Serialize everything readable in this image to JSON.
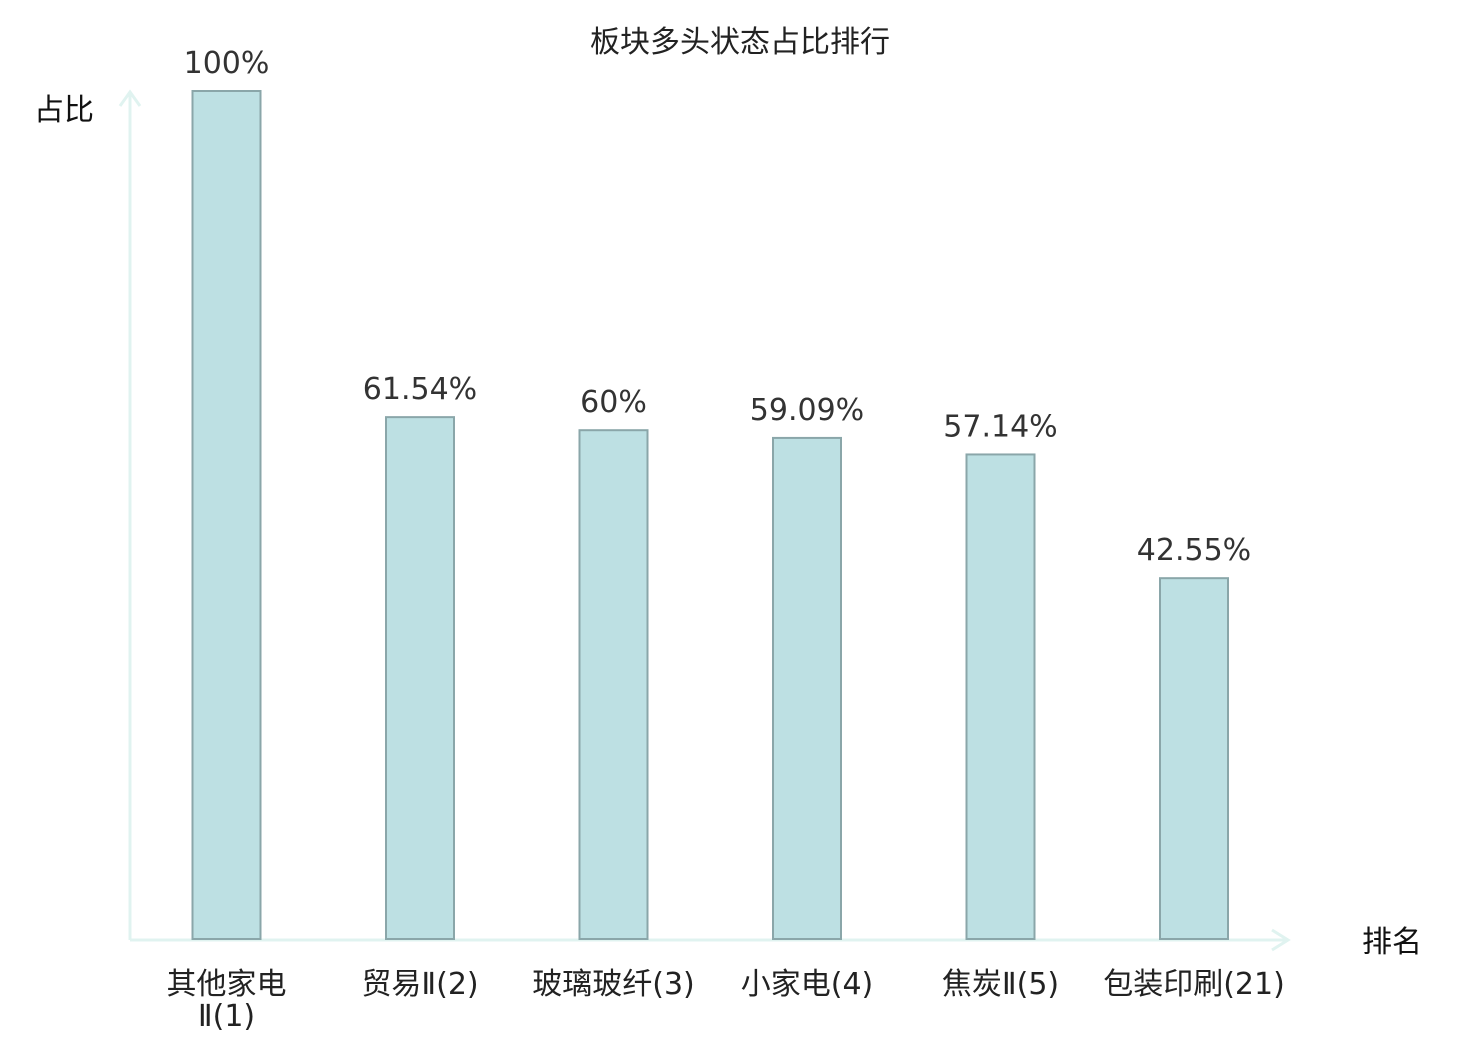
{
  "chart_data": {
    "type": "bar",
    "title": "板块多头状态占比排行",
    "ylabel": "占比",
    "xlabel": "排名",
    "categories": [
      "其他家电Ⅱ(1)",
      "贸易Ⅱ(2)",
      "玻璃玻纤(3)",
      "小家电(4)",
      "焦炭Ⅱ(5)",
      "包装印刷(21)"
    ],
    "category_lines": [
      [
        "其他家电",
        "Ⅱ(1)"
      ],
      [
        "贸易Ⅱ(2)"
      ],
      [
        "玻璃玻纤(3)"
      ],
      [
        "小家电(4)"
      ],
      [
        "焦炭Ⅱ(5)"
      ],
      [
        "包装印刷(21)"
      ]
    ],
    "values": [
      100,
      61.54,
      60,
      59.09,
      57.14,
      42.55
    ],
    "value_labels": [
      "100%",
      "61.54%",
      "60%",
      "59.09%",
      "57.14%",
      "42.55%"
    ],
    "highlight_index": 5,
    "ylim": [
      0,
      100
    ],
    "grid": false,
    "colors": {
      "bar_fill": "#bde0e3",
      "bar_stroke": "#8aa6a9",
      "axis": "#e0f3f0",
      "highlight_label": "#e02020",
      "value_text": "#333333"
    }
  }
}
